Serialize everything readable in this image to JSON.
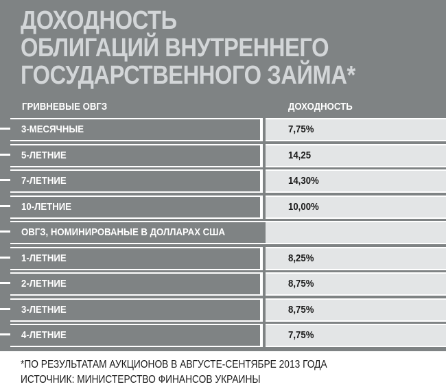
{
  "chart_data": {
    "type": "table",
    "title_lines": [
      "ДОХОДНОСТЬ",
      "ОБЛИГАЦИЙ ВНУТРЕННЕГО",
      "ГОСУДАРСТВЕННОГО ЗАЙМА*"
    ],
    "columns": [
      "ГРИВНЕВЫЕ ОВГЗ",
      "ДОХОДНОСТЬ"
    ],
    "rows": [
      {
        "label": "3-МЕСЯЧНЫЕ",
        "value": "7,75%"
      },
      {
        "label": "5-ЛЕТНИЕ",
        "value": "14,25"
      },
      {
        "label": "7-ЛЕТНИЕ",
        "value": "14,30%"
      },
      {
        "label": "10-ЛЕТНИЕ",
        "value": "10,00%"
      },
      {
        "label": "ОВГЗ, НОМИНИРОВАНЫЕ В ДОЛЛАРАХ США",
        "value": "",
        "section": true
      },
      {
        "label": "1-ЛЕТНИЕ",
        "value": "8,25%"
      },
      {
        "label": "2-ЛЕТНИЕ",
        "value": "8,75%"
      },
      {
        "label": "3-ЛЕТНИЕ",
        "value": "8,75%"
      },
      {
        "label": "4-ЛЕТНИЕ",
        "value": "7,75%"
      }
    ],
    "notes": [
      "*ПО РЕЗУЛЬТАТАМ АУКЦИОНОВ В АВГУСТЕ-СЕНТЯБРЕ 2013 ГОДА",
      "ИСТОЧНИК: МИНИСТЕРСТВО ФИНАНСОВ УКРАИНЫ"
    ]
  },
  "colors": {
    "panel": "#7f8384",
    "value_cell": "#e3e5e6",
    "title": "#d3d6d8"
  }
}
